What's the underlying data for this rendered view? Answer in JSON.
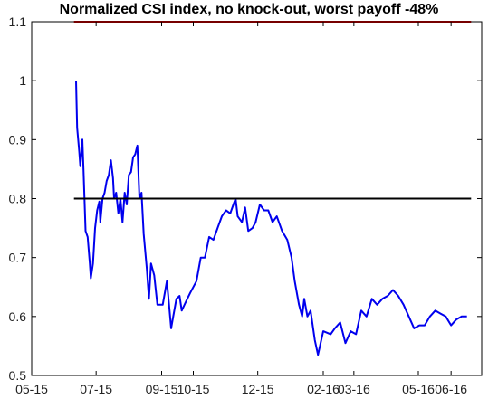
{
  "chart_data": {
    "type": "line",
    "title": "Normalized CSI index, no knock-out, worst payoff -48%",
    "xlabel": "",
    "ylabel": "",
    "ylim": [
      0.5,
      1.1
    ],
    "yticks": [
      "0.5",
      "0.6",
      "0.7",
      "0.8",
      "0.9",
      "1",
      "1.1"
    ],
    "xlim": [
      "2015-05-01",
      "2016-06-30"
    ],
    "xticks": [
      {
        "label": "05-15",
        "date": "2015-05-01"
      },
      {
        "label": "07-15",
        "date": "2015-07-01"
      },
      {
        "label": "09-15",
        "date": "2015-09-01"
      },
      {
        "label": "10-15",
        "date": "2015-10-01"
      },
      {
        "label": "12-15",
        "date": "2015-12-01"
      },
      {
        "label": "02-16",
        "date": "2016-02-01"
      },
      {
        "label": "03-16",
        "date": "2016-03-01"
      },
      {
        "label": "05-16",
        "date": "2016-05-01"
      },
      {
        "label": "06-16",
        "date": "2016-06-01"
      }
    ],
    "grid": false,
    "series": [
      {
        "color": "#0000ee",
        "points": [
          [
            "2015-06-12",
            1.0
          ],
          [
            "2015-06-13",
            0.92
          ],
          [
            "2015-06-15",
            0.88
          ],
          [
            "2015-06-16",
            0.855
          ],
          [
            "2015-06-18",
            0.9
          ],
          [
            "2015-06-19",
            0.85
          ],
          [
            "2015-06-21",
            0.745
          ],
          [
            "2015-06-23",
            0.735
          ],
          [
            "2015-06-25",
            0.69
          ],
          [
            "2015-06-26",
            0.665
          ],
          [
            "2015-06-28",
            0.69
          ],
          [
            "2015-06-30",
            0.75
          ],
          [
            "2015-07-02",
            0.78
          ],
          [
            "2015-07-04",
            0.795
          ],
          [
            "2015-07-05",
            0.76
          ],
          [
            "2015-07-07",
            0.8
          ],
          [
            "2015-07-09",
            0.81
          ],
          [
            "2015-07-11",
            0.83
          ],
          [
            "2015-07-13",
            0.84
          ],
          [
            "2015-07-15",
            0.865
          ],
          [
            "2015-07-17",
            0.835
          ],
          [
            "2015-07-18",
            0.8
          ],
          [
            "2015-07-20",
            0.81
          ],
          [
            "2015-07-22",
            0.775
          ],
          [
            "2015-07-24",
            0.8
          ],
          [
            "2015-07-26",
            0.76
          ],
          [
            "2015-07-28",
            0.81
          ],
          [
            "2015-07-30",
            0.79
          ],
          [
            "2015-08-01",
            0.84
          ],
          [
            "2015-08-03",
            0.845
          ],
          [
            "2015-08-05",
            0.87
          ],
          [
            "2015-08-07",
            0.875
          ],
          [
            "2015-08-09",
            0.89
          ],
          [
            "2015-08-11",
            0.8
          ],
          [
            "2015-08-13",
            0.81
          ],
          [
            "2015-08-15",
            0.74
          ],
          [
            "2015-08-18",
            0.68
          ],
          [
            "2015-08-20",
            0.63
          ],
          [
            "2015-08-22",
            0.69
          ],
          [
            "2015-08-25",
            0.67
          ],
          [
            "2015-08-28",
            0.62
          ],
          [
            "2015-09-02",
            0.62
          ],
          [
            "2015-09-06",
            0.66
          ],
          [
            "2015-09-08",
            0.62
          ],
          [
            "2015-09-10",
            0.58
          ],
          [
            "2015-09-12",
            0.6
          ],
          [
            "2015-09-15",
            0.63
          ],
          [
            "2015-09-18",
            0.635
          ],
          [
            "2015-09-20",
            0.61
          ],
          [
            "2015-09-24",
            0.625
          ],
          [
            "2015-09-28",
            0.64
          ],
          [
            "2015-10-04",
            0.66
          ],
          [
            "2015-10-08",
            0.7
          ],
          [
            "2015-10-12",
            0.7
          ],
          [
            "2015-10-16",
            0.735
          ],
          [
            "2015-10-20",
            0.73
          ],
          [
            "2015-10-24",
            0.75
          ],
          [
            "2015-10-28",
            0.77
          ],
          [
            "2015-11-01",
            0.78
          ],
          [
            "2015-11-05",
            0.775
          ],
          [
            "2015-11-08",
            0.79
          ],
          [
            "2015-11-10",
            0.8
          ],
          [
            "2015-11-12",
            0.77
          ],
          [
            "2015-11-16",
            0.76
          ],
          [
            "2015-11-19",
            0.785
          ],
          [
            "2015-11-22",
            0.745
          ],
          [
            "2015-11-26",
            0.75
          ],
          [
            "2015-11-29",
            0.76
          ],
          [
            "2015-12-03",
            0.79
          ],
          [
            "2015-12-07",
            0.78
          ],
          [
            "2015-12-11",
            0.78
          ],
          [
            "2015-12-15",
            0.76
          ],
          [
            "2015-12-19",
            0.77
          ],
          [
            "2015-12-24",
            0.745
          ],
          [
            "2015-12-29",
            0.73
          ],
          [
            "2016-01-02",
            0.7
          ],
          [
            "2016-01-05",
            0.66
          ],
          [
            "2016-01-09",
            0.62
          ],
          [
            "2016-01-12",
            0.6
          ],
          [
            "2016-01-14",
            0.63
          ],
          [
            "2016-01-17",
            0.6
          ],
          [
            "2016-01-20",
            0.61
          ],
          [
            "2016-01-24",
            0.56
          ],
          [
            "2016-01-27",
            0.535
          ],
          [
            "2016-02-01",
            0.575
          ],
          [
            "2016-02-08",
            0.57
          ],
          [
            "2016-02-12",
            0.58
          ],
          [
            "2016-02-17",
            0.59
          ],
          [
            "2016-02-22",
            0.555
          ],
          [
            "2016-02-27",
            0.575
          ],
          [
            "2016-03-03",
            0.57
          ],
          [
            "2016-03-08",
            0.61
          ],
          [
            "2016-03-13",
            0.6
          ],
          [
            "2016-03-18",
            0.63
          ],
          [
            "2016-03-23",
            0.62
          ],
          [
            "2016-03-28",
            0.63
          ],
          [
            "2016-04-02",
            0.635
          ],
          [
            "2016-04-07",
            0.645
          ],
          [
            "2016-04-12",
            0.635
          ],
          [
            "2016-04-17",
            0.62
          ],
          [
            "2016-04-22",
            0.6
          ],
          [
            "2016-04-27",
            0.58
          ],
          [
            "2016-05-02",
            0.585
          ],
          [
            "2016-05-07",
            0.585
          ],
          [
            "2016-05-12",
            0.6
          ],
          [
            "2016-05-17",
            0.61
          ],
          [
            "2016-05-22",
            0.605
          ],
          [
            "2016-05-27",
            0.6
          ],
          [
            "2016-06-01",
            0.585
          ],
          [
            "2016-06-06",
            0.595
          ],
          [
            "2016-06-11",
            0.6
          ],
          [
            "2016-06-16",
            0.6
          ]
        ]
      },
      {
        "color": "#000000",
        "points": [
          [
            "2015-06-10",
            0.8
          ],
          [
            "2016-06-20",
            0.8
          ]
        ]
      },
      {
        "color": "#ee0000",
        "points": [
          [
            "2015-06-10",
            1.1
          ],
          [
            "2016-06-20",
            1.1
          ]
        ]
      }
    ]
  }
}
